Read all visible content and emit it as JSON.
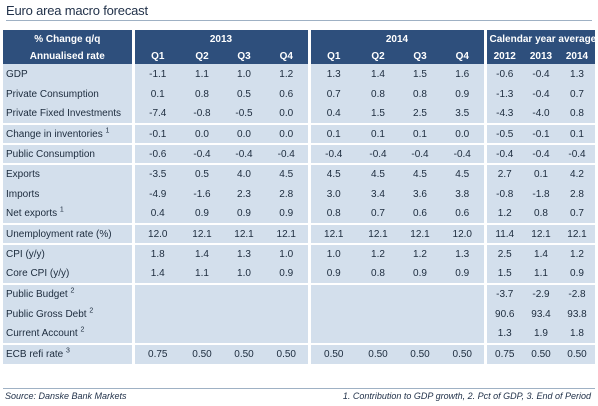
{
  "title": "Euro area macro forecast",
  "header": {
    "col_label_line1": "% Change q/q",
    "col_label_line2": "Annualised rate",
    "groups": [
      "2013",
      "2014",
      "Calendar year average"
    ],
    "sub_2013": [
      "Q1",
      "Q2",
      "Q3",
      "Q4"
    ],
    "sub_2014": [
      "Q1",
      "Q2",
      "Q3",
      "Q4"
    ],
    "sub_cal": [
      "2012",
      "2013",
      "2014"
    ]
  },
  "rows": [
    {
      "label": "GDP",
      "sup": "",
      "v": [
        "-1.1",
        "1.1",
        "1.0",
        "1.2",
        "1.3",
        "1.4",
        "1.5",
        "1.6",
        "-0.6",
        "-0.4",
        "1.3"
      ]
    },
    {
      "label": "Private Consumption",
      "sup": "",
      "v": [
        "0.1",
        "0.8",
        "0.5",
        "0.6",
        "0.7",
        "0.8",
        "0.8",
        "0.9",
        "-1.3",
        "-0.4",
        "0.7"
      ]
    },
    {
      "label": "Private Fixed Investments",
      "sup": "",
      "v": [
        "-7.4",
        "-0.8",
        "-0.5",
        "0.0",
        "0.4",
        "1.5",
        "2.5",
        "3.5",
        "-4.3",
        "-4.0",
        "0.8"
      ]
    },
    {
      "label": "Change in inventories",
      "sup": "1",
      "v": [
        "-0.1",
        "0.0",
        "0.0",
        "0.0",
        "0.1",
        "0.1",
        "0.1",
        "0.0",
        "-0.5",
        "-0.1",
        "0.1"
      ]
    },
    {
      "label": "Public Consumption",
      "sup": "",
      "v": [
        "-0.6",
        "-0.4",
        "-0.4",
        "-0.4",
        "-0.4",
        "-0.4",
        "-0.4",
        "-0.4",
        "-0.4",
        "-0.4",
        "-0.4"
      ]
    },
    {
      "label": "Exports",
      "sup": "",
      "v": [
        "-3.5",
        "0.5",
        "4.0",
        "4.5",
        "4.5",
        "4.5",
        "4.5",
        "4.5",
        "2.7",
        "0.1",
        "4.2"
      ]
    },
    {
      "label": "Imports",
      "sup": "",
      "v": [
        "-4.9",
        "-1.6",
        "2.3",
        "2.8",
        "3.0",
        "3.4",
        "3.6",
        "3.8",
        "-0.8",
        "-1.8",
        "2.8"
      ]
    },
    {
      "label": "Net exports",
      "sup": "1",
      "v": [
        "0.4",
        "0.9",
        "0.9",
        "0.9",
        "0.8",
        "0.7",
        "0.6",
        "0.6",
        "1.2",
        "0.8",
        "0.7"
      ]
    },
    {
      "label": "Unemployment rate (%)",
      "sup": "",
      "v": [
        "12.0",
        "12.1",
        "12.1",
        "12.1",
        "12.1",
        "12.1",
        "12.1",
        "12.0",
        "11.4",
        "12.1",
        "12.1"
      ]
    },
    {
      "label": "CPI (y/y)",
      "sup": "",
      "v": [
        "1.8",
        "1.4",
        "1.3",
        "1.0",
        "1.0",
        "1.2",
        "1.2",
        "1.3",
        "2.5",
        "1.4",
        "1.2"
      ]
    },
    {
      "label": "Core CPI (y/y)",
      "sup": "",
      "v": [
        "1.4",
        "1.1",
        "1.0",
        "0.9",
        "0.9",
        "0.8",
        "0.9",
        "0.9",
        "1.5",
        "1.1",
        "0.9"
      ]
    },
    {
      "label": "Public Budget",
      "sup": "2",
      "v": [
        "",
        "",
        "",
        "",
        "",
        "",
        "",
        "",
        "-3.7",
        "-2.9",
        "-2.8"
      ]
    },
    {
      "label": "Public Gross Debt",
      "sup": "2",
      "v": [
        "",
        "",
        "",
        "",
        "",
        "",
        "",
        "",
        "90.6",
        "93.4",
        "93.8"
      ]
    },
    {
      "label": "Current Account",
      "sup": "2",
      "v": [
        "",
        "",
        "",
        "",
        "",
        "",
        "",
        "",
        "1.3",
        "1.9",
        "1.8"
      ]
    },
    {
      "label": "ECB refi rate",
      "sup": "3",
      "v": [
        "0.75",
        "0.50",
        "0.50",
        "0.50",
        "0.50",
        "0.50",
        "0.50",
        "0.50",
        "0.75",
        "0.50",
        "0.50"
      ]
    }
  ],
  "footer": {
    "source": "Source: Danske Bank Markets",
    "notes": "1. Contribution to GDP growth, 2. Pct of GDP, 3. End of Period"
  }
}
